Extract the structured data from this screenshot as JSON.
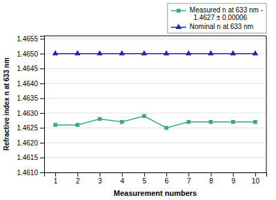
{
  "chart_data": {
    "type": "line",
    "x": [
      1,
      2,
      3,
      4,
      5,
      6,
      7,
      8,
      9,
      10
    ],
    "series": [
      {
        "name": "Nominal n at 633 nm",
        "color": "#2222aa",
        "marker": "triangle",
        "line_style": "solid",
        "values": [
          1.465,
          1.465,
          1.465,
          1.465,
          1.465,
          1.465,
          1.465,
          1.465,
          1.465,
          1.465
        ]
      },
      {
        "name": "Measured n at 633 nm -\n  1.4627 ± 0.00006",
        "color": "#3aaa7a",
        "marker": "square",
        "line_style": "solid",
        "values": [
          1.4626,
          1.4626,
          1.4628,
          1.4627,
          1.4629,
          1.4625,
          1.4627,
          1.4627,
          1.4627,
          1.4627
        ]
      }
    ],
    "xlabel": "Measurement numbers",
    "ylabel": "Refractive index n at 633 nm",
    "xlim": [
      0.5,
      10.5
    ],
    "xticks": [
      1,
      2,
      3,
      4,
      5,
      6,
      7,
      8,
      9,
      10
    ],
    "ylim": [
      1.461,
      1.4656
    ],
    "yticks": [
      {
        "value": 1.461,
        "label": "1.4610"
      },
      1.4615,
      {
        "value": 1.462,
        "label": "1.4620"
      },
      1.4625,
      {
        "value": 1.463,
        "label": "1.4630"
      },
      1.4635,
      {
        "value": 1.464,
        "label": "1.4640"
      },
      1.4645,
      {
        "value": 1.465,
        "label": "1.4650"
      },
      1.4655
    ],
    "grid": true,
    "legend": "upper right"
  }
}
